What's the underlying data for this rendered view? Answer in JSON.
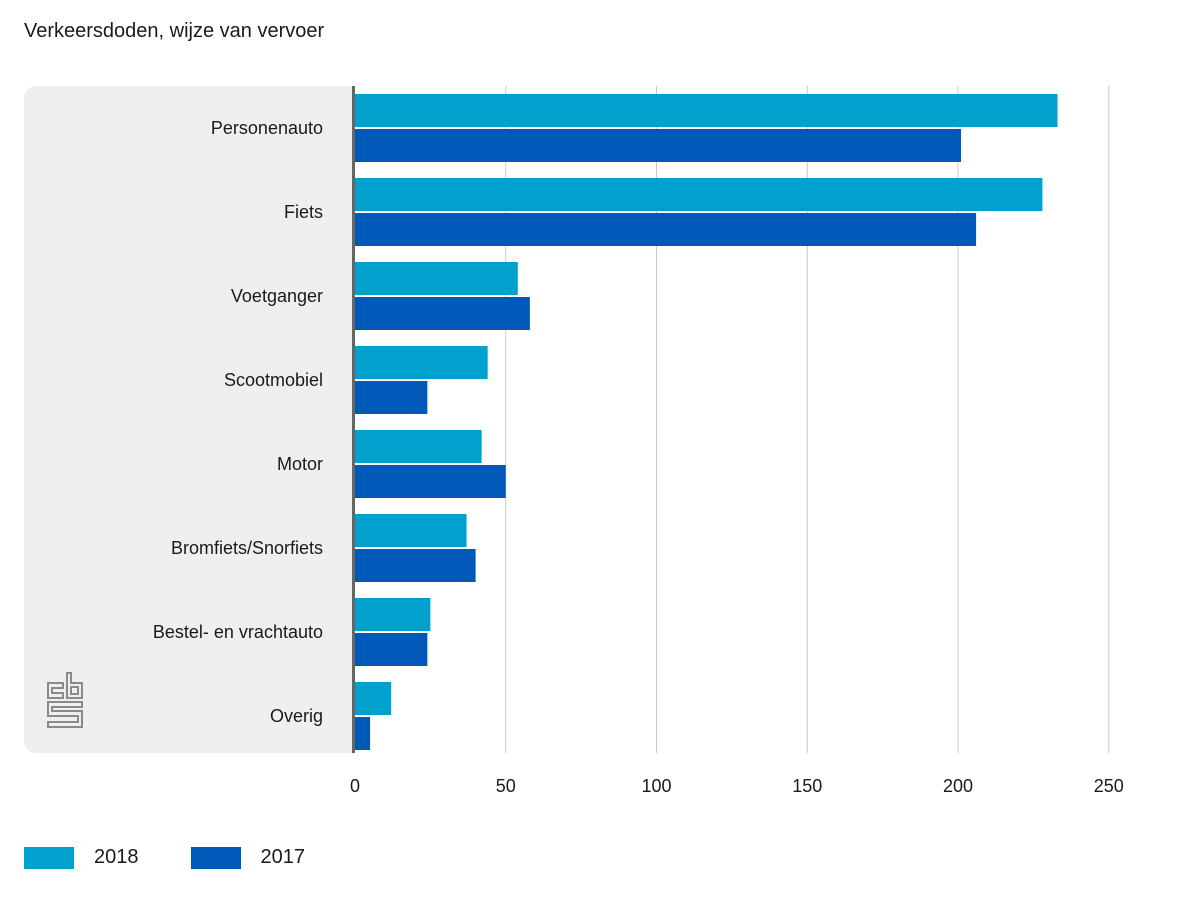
{
  "chart_data": {
    "type": "bar",
    "orientation": "horizontal",
    "title": "Verkeersdoden, wijze van vervoer",
    "categories": [
      "Personenauto",
      "Fiets",
      "Voetganger",
      "Scootmobiel",
      "Motor",
      "Bromfiets/Snorfiets",
      "Bestel- en vrachtauto",
      "Overig"
    ],
    "series": [
      {
        "name": "2018",
        "color": "#00a1cd",
        "values": [
          233,
          228,
          54,
          44,
          42,
          37,
          25,
          12
        ]
      },
      {
        "name": "2017",
        "color": "#0058b8",
        "values": [
          201,
          206,
          58,
          24,
          50,
          40,
          24,
          5
        ]
      }
    ],
    "xlim": [
      0,
      250
    ],
    "xticks": [
      "0",
      "50",
      "100",
      "150",
      "200",
      "250"
    ],
    "xlabel": "",
    "ylabel": "",
    "grid": true,
    "legend_position": "bottom-left"
  },
  "logo": {
    "name": "cbs-logo",
    "text": "cbs"
  }
}
